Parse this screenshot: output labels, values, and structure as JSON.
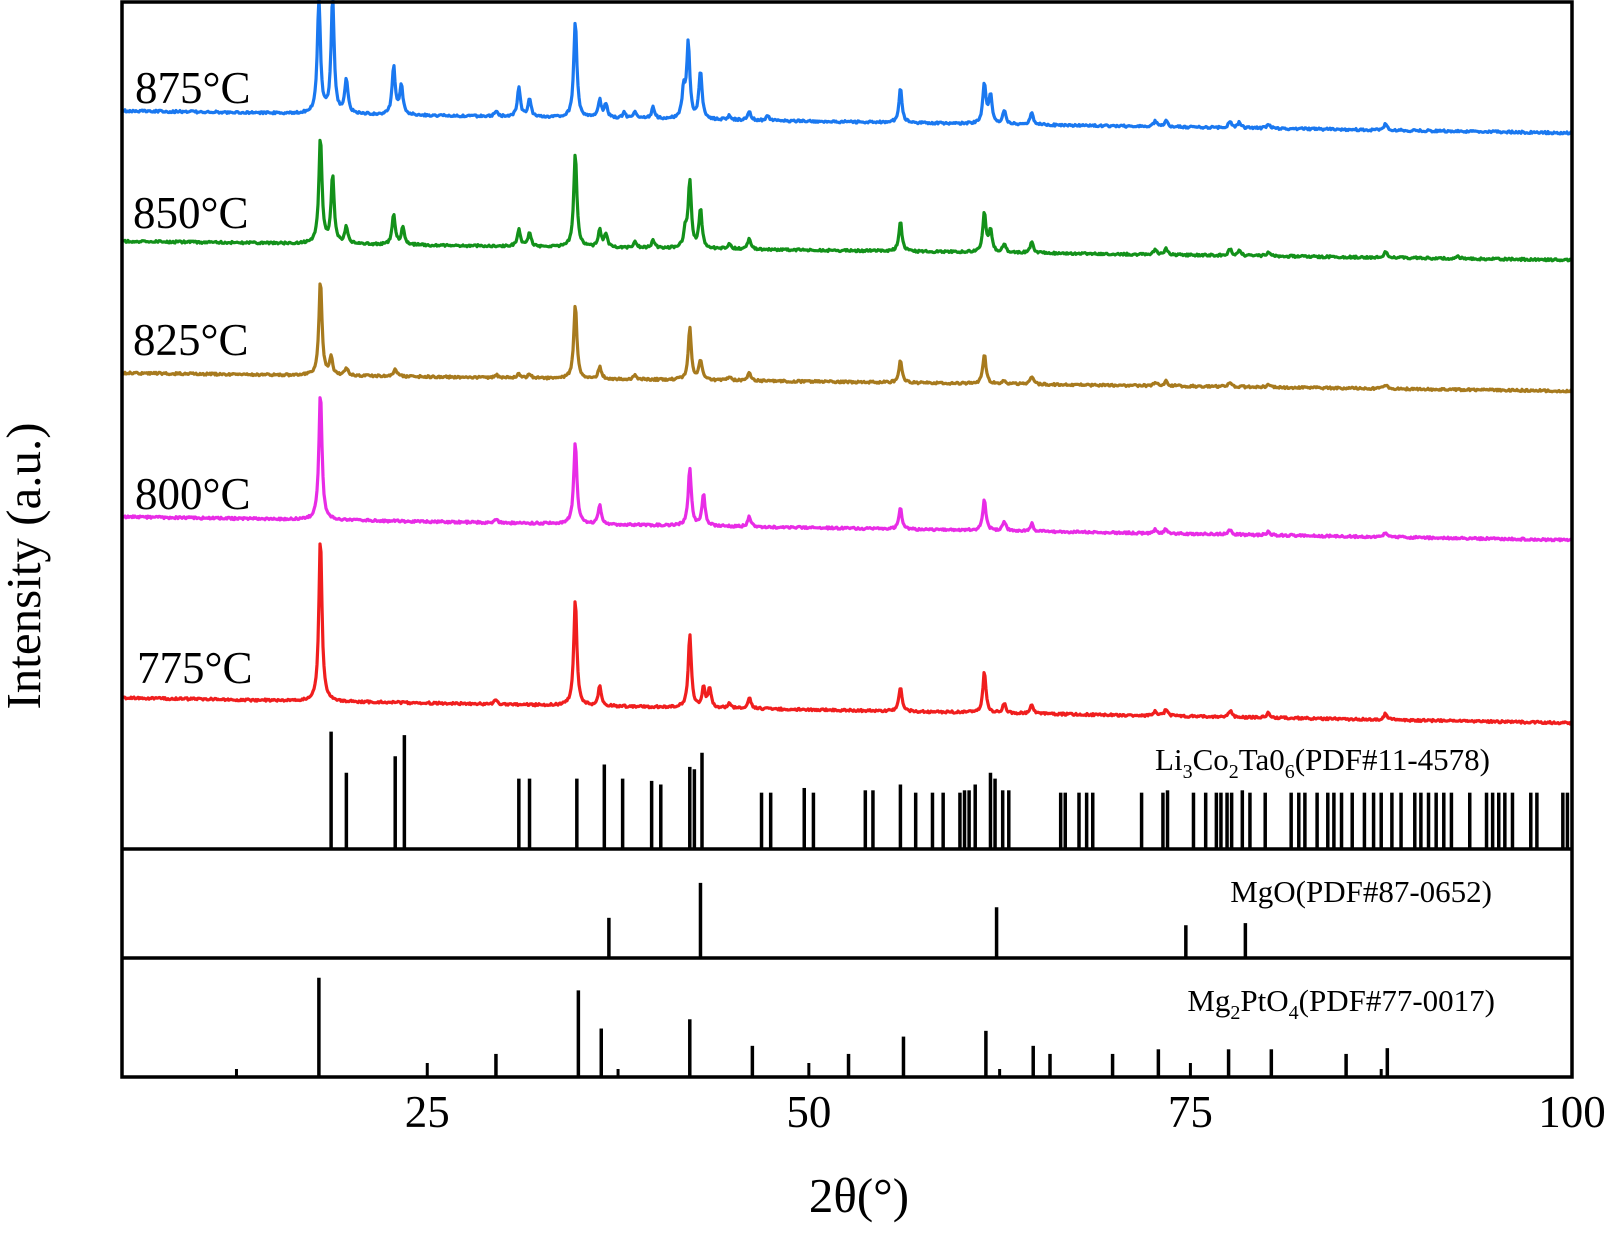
{
  "chart_data": {
    "type": "line",
    "xlabel": "2θ(°)",
    "ylabel": "Intensity (a.u.)",
    "xlim": [
      5,
      100
    ],
    "xticks": [
      25,
      50,
      75,
      100
    ],
    "series": [
      {
        "name": "875°C",
        "color": "#1a78f0",
        "baseline_start": 0.08,
        "baseline_end": 0,
        "peaks": [
          [
            17.9,
            1.0,
            0.12
          ],
          [
            18.8,
            1.0,
            0.12
          ],
          [
            19.7,
            0.3,
            0.12
          ],
          [
            22.8,
            0.42,
            0.12
          ],
          [
            23.3,
            0.25,
            0.12
          ],
          [
            29.5,
            0.05,
            0.12
          ],
          [
            31.0,
            0.25,
            0.12
          ],
          [
            31.7,
            0.15,
            0.12
          ],
          [
            34.7,
            0.85,
            0.12
          ],
          [
            36.3,
            0.15,
            0.12
          ],
          [
            36.7,
            0.12,
            0.12
          ],
          [
            37.9,
            0.05,
            0.12
          ],
          [
            38.6,
            0.05,
            0.12
          ],
          [
            39.8,
            0.1,
            0.12
          ],
          [
            41.8,
            0.25,
            0.12
          ],
          [
            42.1,
            0.65,
            0.12
          ],
          [
            42.9,
            0.42,
            0.12
          ],
          [
            44.8,
            0.04,
            0.12
          ],
          [
            46.1,
            0.08,
            0.12
          ],
          [
            47.3,
            0.04,
            0.12
          ],
          [
            56.0,
            0.3,
            0.12
          ],
          [
            61.5,
            0.35,
            0.12
          ],
          [
            61.9,
            0.25,
            0.12
          ],
          [
            62.8,
            0.12,
            0.12
          ],
          [
            64.6,
            0.1,
            0.12
          ],
          [
            72.7,
            0.05,
            0.12
          ],
          [
            73.4,
            0.06,
            0.12
          ],
          [
            77.6,
            0.06,
            0.12
          ],
          [
            78.2,
            0.05,
            0.12
          ],
          [
            80.1,
            0.04,
            0.12
          ],
          [
            87.8,
            0.06,
            0.12
          ]
        ]
      },
      {
        "name": "850°C",
        "color": "#13911a",
        "baseline_start": 0.06,
        "baseline_end": 0,
        "peaks": [
          [
            18.0,
            0.95,
            0.12
          ],
          [
            18.8,
            0.6,
            0.12
          ],
          [
            19.7,
            0.15,
            0.12
          ],
          [
            22.8,
            0.27,
            0.12
          ],
          [
            23.4,
            0.15,
            0.12
          ],
          [
            31.0,
            0.15,
            0.12
          ],
          [
            31.7,
            0.12,
            0.12
          ],
          [
            34.7,
            0.85,
            0.12
          ],
          [
            36.3,
            0.15,
            0.12
          ],
          [
            36.7,
            0.12,
            0.12
          ],
          [
            38.6,
            0.05,
            0.12
          ],
          [
            39.8,
            0.07,
            0.12
          ],
          [
            41.9,
            0.15,
            0.12
          ],
          [
            42.2,
            0.6,
            0.12
          ],
          [
            42.9,
            0.35,
            0.12
          ],
          [
            44.8,
            0.05,
            0.12
          ],
          [
            46.1,
            0.1,
            0.12
          ],
          [
            56.0,
            0.27,
            0.12
          ],
          [
            61.5,
            0.35,
            0.12
          ],
          [
            61.9,
            0.2,
            0.12
          ],
          [
            62.8,
            0.08,
            0.12
          ],
          [
            64.6,
            0.1,
            0.12
          ],
          [
            72.7,
            0.05,
            0.12
          ],
          [
            73.4,
            0.06,
            0.12
          ],
          [
            77.6,
            0.06,
            0.12
          ],
          [
            78.2,
            0.05,
            0.12
          ],
          [
            80.1,
            0.04,
            0.12
          ],
          [
            87.8,
            0.06,
            0.12
          ],
          [
            92.5,
            0.02,
            0.12
          ]
        ]
      },
      {
        "name": "825°C",
        "color": "#a77a1e",
        "baseline_start": 0.06,
        "baseline_end": 0,
        "peaks": [
          [
            18.0,
            0.95,
            0.12
          ],
          [
            18.7,
            0.17,
            0.12
          ],
          [
            19.7,
            0.08,
            0.12
          ],
          [
            22.9,
            0.08,
            0.12
          ],
          [
            29.5,
            0.03,
            0.12
          ],
          [
            31.0,
            0.04,
            0.12
          ],
          [
            31.7,
            0.04,
            0.12
          ],
          [
            34.7,
            0.75,
            0.12
          ],
          [
            36.3,
            0.12,
            0.12
          ],
          [
            38.6,
            0.04,
            0.12
          ],
          [
            42.2,
            0.52,
            0.12
          ],
          [
            42.9,
            0.2,
            0.12
          ],
          [
            44.8,
            0.04,
            0.12
          ],
          [
            46.1,
            0.08,
            0.12
          ],
          [
            56.0,
            0.22,
            0.12
          ],
          [
            61.5,
            0.3,
            0.12
          ],
          [
            62.8,
            0.04,
            0.12
          ],
          [
            64.6,
            0.08,
            0.12
          ],
          [
            72.7,
            0.04,
            0.12
          ],
          [
            73.4,
            0.05,
            0.12
          ],
          [
            77.6,
            0.05,
            0.12
          ],
          [
            80.1,
            0.03,
            0.12
          ],
          [
            87.8,
            0.04,
            0.12
          ]
        ]
      },
      {
        "name": "800°C",
        "color": "#e82ce6",
        "baseline_start": 0.08,
        "baseline_end": 0,
        "peaks": [
          [
            18.0,
            1.0,
            0.12
          ],
          [
            29.5,
            0.03,
            0.12
          ],
          [
            34.7,
            0.65,
            0.12
          ],
          [
            36.3,
            0.15,
            0.12
          ],
          [
            42.2,
            0.45,
            0.12
          ],
          [
            43.1,
            0.25,
            0.12
          ],
          [
            46.1,
            0.08,
            0.12
          ],
          [
            56.0,
            0.17,
            0.12
          ],
          [
            61.5,
            0.25,
            0.12
          ],
          [
            62.8,
            0.08,
            0.12
          ],
          [
            64.6,
            0.06,
            0.12
          ],
          [
            72.7,
            0.03,
            0.12
          ],
          [
            73.4,
            0.04,
            0.12
          ],
          [
            77.6,
            0.04,
            0.12
          ],
          [
            80.1,
            0.03,
            0.12
          ],
          [
            87.8,
            0.04,
            0.12
          ]
        ]
      },
      {
        "name": "775°C",
        "color": "#f01e1e",
        "baseline_start": 0.08,
        "baseline_end": 0,
        "peaks": [
          [
            18.0,
            1.0,
            0.12
          ],
          [
            29.5,
            0.03,
            0.12
          ],
          [
            34.7,
            0.65,
            0.12
          ],
          [
            36.3,
            0.12,
            0.12
          ],
          [
            42.2,
            0.45,
            0.12
          ],
          [
            43.1,
            0.12,
            0.12
          ],
          [
            43.5,
            0.12,
            0.12
          ],
          [
            44.8,
            0.03,
            0.12
          ],
          [
            46.1,
            0.07,
            0.12
          ],
          [
            56.0,
            0.15,
            0.12
          ],
          [
            61.5,
            0.25,
            0.12
          ],
          [
            62.8,
            0.06,
            0.12
          ],
          [
            64.6,
            0.05,
            0.12
          ],
          [
            72.7,
            0.03,
            0.12
          ],
          [
            73.4,
            0.04,
            0.12
          ],
          [
            77.6,
            0.04,
            0.12
          ],
          [
            80.1,
            0.03,
            0.12
          ],
          [
            87.8,
            0.04,
            0.12
          ]
        ]
      }
    ],
    "references": [
      {
        "name": "Li3Co2Ta06(PDF#11-4578)",
        "label_parts": [
          "Li",
          "3",
          "Co",
          "2",
          "Ta0",
          "6",
          "(PDF#11-4578)"
        ],
        "peaks": [
          [
            18.7,
            1.0
          ],
          [
            19.7,
            0.65
          ],
          [
            22.9,
            0.79
          ],
          [
            23.5,
            0.97
          ],
          [
            31.0,
            0.6
          ],
          [
            31.7,
            0.6
          ],
          [
            34.8,
            0.6
          ],
          [
            36.6,
            0.72
          ],
          [
            37.8,
            0.6
          ],
          [
            39.7,
            0.58
          ],
          [
            40.3,
            0.55
          ],
          [
            42.2,
            0.7
          ],
          [
            42.5,
            0.68
          ],
          [
            43.0,
            0.82
          ],
          [
            46.9,
            0.48
          ],
          [
            47.5,
            0.48
          ],
          [
            49.7,
            0.52
          ],
          [
            50.3,
            0.48
          ],
          [
            53.7,
            0.5
          ],
          [
            54.2,
            0.5
          ],
          [
            56.0,
            0.55
          ],
          [
            57.0,
            0.48
          ],
          [
            58.1,
            0.48
          ],
          [
            58.8,
            0.48
          ],
          [
            59.9,
            0.48
          ],
          [
            60.2,
            0.5
          ],
          [
            60.5,
            0.5
          ],
          [
            60.9,
            0.55
          ],
          [
            61.9,
            0.65
          ],
          [
            62.2,
            0.6
          ],
          [
            62.7,
            0.5
          ],
          [
            63.1,
            0.5
          ],
          [
            66.5,
            0.48
          ],
          [
            66.8,
            0.48
          ],
          [
            67.7,
            0.48
          ],
          [
            68.2,
            0.48
          ],
          [
            68.6,
            0.48
          ],
          [
            71.8,
            0.48
          ],
          [
            73.2,
            0.48
          ],
          [
            73.5,
            0.5
          ],
          [
            75.2,
            0.48
          ],
          [
            76.0,
            0.48
          ],
          [
            76.7,
            0.48
          ],
          [
            77.0,
            0.48
          ],
          [
            77.4,
            0.48
          ],
          [
            77.7,
            0.48
          ],
          [
            78.4,
            0.5
          ],
          [
            78.9,
            0.48
          ],
          [
            79.9,
            0.48
          ],
          [
            81.6,
            0.48
          ],
          [
            82.1,
            0.48
          ],
          [
            82.5,
            0.48
          ],
          [
            83.3,
            0.48
          ],
          [
            84.0,
            0.48
          ],
          [
            84.4,
            0.48
          ],
          [
            84.9,
            0.48
          ],
          [
            85.6,
            0.48
          ],
          [
            86.4,
            0.48
          ],
          [
            87.0,
            0.48
          ],
          [
            87.5,
            0.48
          ],
          [
            88.2,
            0.48
          ],
          [
            88.8,
            0.48
          ],
          [
            89.7,
            0.48
          ],
          [
            90.1,
            0.48
          ],
          [
            90.6,
            0.48
          ],
          [
            91.1,
            0.48
          ],
          [
            91.6,
            0.48
          ],
          [
            92.1,
            0.48
          ],
          [
            93.3,
            0.48
          ],
          [
            94.4,
            0.48
          ],
          [
            94.8,
            0.48
          ],
          [
            95.2,
            0.48
          ],
          [
            95.6,
            0.48
          ],
          [
            96.1,
            0.48
          ],
          [
            97.3,
            0.48
          ],
          [
            97.7,
            0.48
          ],
          [
            99.4,
            0.48
          ],
          [
            99.7,
            0.48
          ]
        ]
      },
      {
        "name": "MgO(PDF#87-0652)",
        "label_parts": [
          "MgO(PDF#87-0652)"
        ],
        "peaks": [
          [
            36.9,
            0.38
          ],
          [
            42.9,
            0.71
          ],
          [
            62.3,
            0.48
          ],
          [
            74.7,
            0.31
          ],
          [
            78.6,
            0.33
          ]
        ]
      },
      {
        "name": "Mg2PtO4(PDF#77-0017)",
        "label_parts": [
          "Mg",
          "2",
          "PtO",
          "4",
          "(PDF#77-0017)"
        ],
        "peaks": [
          [
            17.9,
            0.86
          ],
          [
            29.5,
            0.2
          ],
          [
            34.9,
            0.75
          ],
          [
            36.4,
            0.42
          ],
          [
            42.2,
            0.5
          ],
          [
            46.3,
            0.27
          ],
          [
            52.6,
            0.2
          ],
          [
            56.2,
            0.35
          ],
          [
            61.6,
            0.4
          ],
          [
            64.7,
            0.27
          ],
          [
            65.8,
            0.2
          ],
          [
            69.9,
            0.2
          ],
          [
            72.9,
            0.24
          ],
          [
            77.5,
            0.24
          ],
          [
            80.3,
            0.24
          ],
          [
            85.2,
            0.2
          ],
          [
            87.9,
            0.25
          ]
        ]
      }
    ]
  }
}
